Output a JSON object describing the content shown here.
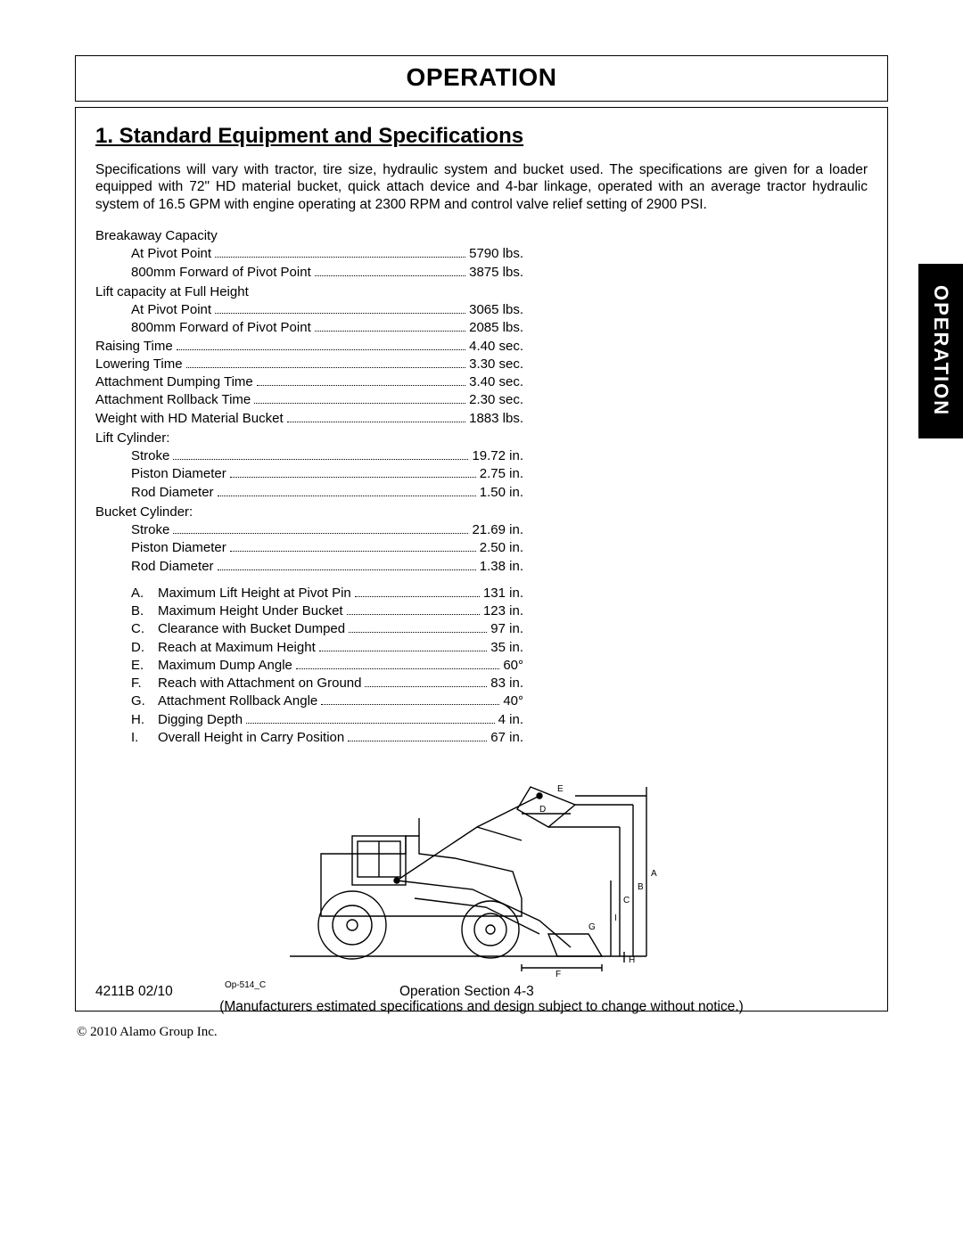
{
  "page_title": "OPERATION",
  "section_heading": "1. Standard Equipment and Specifications",
  "intro": "Specifications will vary with tractor, tire size, hydraulic system and bucket used. The specifications are given for a loader equipped with 72\" HD material bucket, quick attach device and 4-bar linkage, operated with an average tractor hydraulic system of 16.5 GPM with engine operating at 2300 RPM and control valve relief setting of 2900 PSI.",
  "spec_groups": [
    {
      "header": "Breakaway Capacity",
      "items": [
        {
          "indent": 1,
          "label": "At Pivot Point",
          "value": "5790 lbs."
        },
        {
          "indent": 1,
          "label": "800mm Forward of Pivot Point",
          "value": "3875 lbs."
        }
      ]
    },
    {
      "header": "Lift capacity at Full Height",
      "items": [
        {
          "indent": 1,
          "label": "At Pivot Point",
          "value": "3065 lbs."
        },
        {
          "indent": 1,
          "label": "800mm Forward of Pivot Point",
          "value": "2085 lbs."
        }
      ]
    },
    {
      "header": null,
      "items": [
        {
          "indent": 0,
          "label": "Raising Time",
          "value": "4.40 sec."
        },
        {
          "indent": 0,
          "label": "Lowering Time",
          "value": "3.30 sec."
        },
        {
          "indent": 0,
          "label": "Attachment Dumping Time",
          "value": "3.40 sec."
        },
        {
          "indent": 0,
          "label": "Attachment Rollback Time",
          "value": "2.30 sec."
        },
        {
          "indent": 0,
          "label": "Weight with HD Material Bucket",
          "value": "1883 lbs."
        }
      ]
    },
    {
      "header": "Lift Cylinder:",
      "items": [
        {
          "indent": 1,
          "label": "Stroke",
          "value": "19.72 in."
        },
        {
          "indent": 1,
          "label": "Piston Diameter",
          "value": "2.75 in."
        },
        {
          "indent": 1,
          "label": "Rod Diameter",
          "value": "1.50 in."
        }
      ]
    },
    {
      "header": "Bucket Cylinder:",
      "items": [
        {
          "indent": 1,
          "label": "Stroke",
          "value": "21.69 in."
        },
        {
          "indent": 1,
          "label": "Piston Diameter",
          "value": "2.50 in."
        },
        {
          "indent": 1,
          "label": "Rod Diameter",
          "value": "1.38 in."
        }
      ]
    }
  ],
  "lettered_specs": [
    {
      "letter": "A.",
      "label": "Maximum Lift Height at Pivot Pin",
      "value": "131 in."
    },
    {
      "letter": "B.",
      "label": "Maximum Height Under Bucket",
      "value": "123 in."
    },
    {
      "letter": "C.",
      "label": "Clearance with Bucket Dumped",
      "value": "97 in."
    },
    {
      "letter": "D.",
      "label": "Reach at Maximum Height",
      "value": "35 in."
    },
    {
      "letter": "E.",
      "label": "Maximum Dump Angle",
      "value": "60°"
    },
    {
      "letter": "F.",
      "label": "Reach with Attachment on Ground",
      "value": "83 in."
    },
    {
      "letter": "G.",
      "label": "Attachment Rollback Angle",
      "value": "40°"
    },
    {
      "letter": "H.",
      "label": "Digging Depth",
      "value": "4 in."
    },
    {
      "letter": "I.",
      "label": "Overall Height in Carry Position",
      "value": "67 in."
    }
  ],
  "diagram_caption": "Op-514_C",
  "notice": "(Manufacturers estimated specifications and design subject to change without notice.)",
  "footer_left": "4211B   02/10",
  "footer_center": "Operation Section 4-3",
  "side_tab": "OPERATION",
  "copyright": "© 2010 Alamo Group Inc.",
  "colors": {
    "text": "#000000",
    "bg": "#ffffff",
    "tab_bg": "#000000",
    "tab_text": "#ffffff"
  }
}
